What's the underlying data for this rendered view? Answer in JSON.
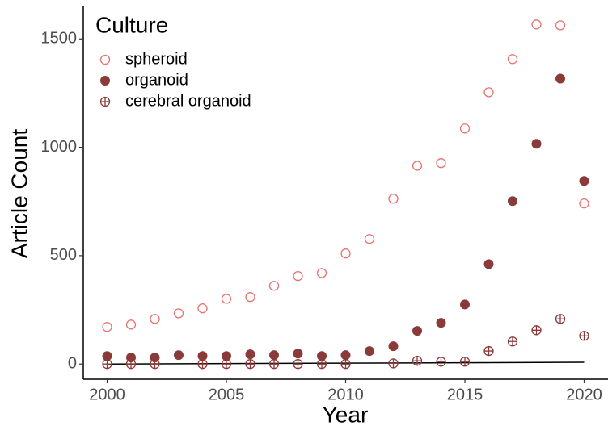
{
  "chart_data": {
    "type": "scatter",
    "x_label": "Year",
    "y_label": "Article Count",
    "legend_title": "Culture",
    "legend_position": "top-left",
    "x": [
      2000,
      2001,
      2002,
      2003,
      2004,
      2005,
      2006,
      2007,
      2008,
      2009,
      2010,
      2011,
      2012,
      2013,
      2014,
      2015,
      2016,
      2017,
      2018,
      2019,
      2020
    ],
    "series": [
      {
        "name": "spheroid",
        "color": "#e8726e",
        "marker": "open-circle",
        "values": [
          171,
          182,
          208,
          234,
          257,
          301,
          309,
          361,
          406,
          420,
          510,
          577,
          763,
          915,
          927,
          1087,
          1254,
          1407,
          1567,
          1563,
          741
        ]
      },
      {
        "name": "organoid",
        "color": "#8b3a3a",
        "marker": "filled-circle",
        "values": [
          37,
          30,
          30,
          41,
          37,
          37,
          45,
          41,
          48,
          37,
          41,
          60,
          82,
          153,
          190,
          275,
          461,
          752,
          1016,
          1317,
          845
        ]
      },
      {
        "name": "cerebral organoid",
        "color": "#8b3a3a",
        "marker": "crossed-circle",
        "values": [
          0,
          0,
          0,
          null,
          0,
          0,
          0,
          0,
          0,
          0,
          0,
          null,
          3,
          15,
          11,
          11,
          60,
          104,
          156,
          208,
          130
        ]
      }
    ],
    "trend": {
      "x": [
        2000,
        2020
      ],
      "values": [
        0,
        8
      ],
      "color": "#000000"
    },
    "xlim": [
      1999,
      2021
    ],
    "ylim": [
      -70,
      1650
    ],
    "xticks": [
      2000,
      2005,
      2010,
      2015,
      2020
    ],
    "yticks": [
      0,
      500,
      1000,
      1500
    ],
    "grid": false
  }
}
